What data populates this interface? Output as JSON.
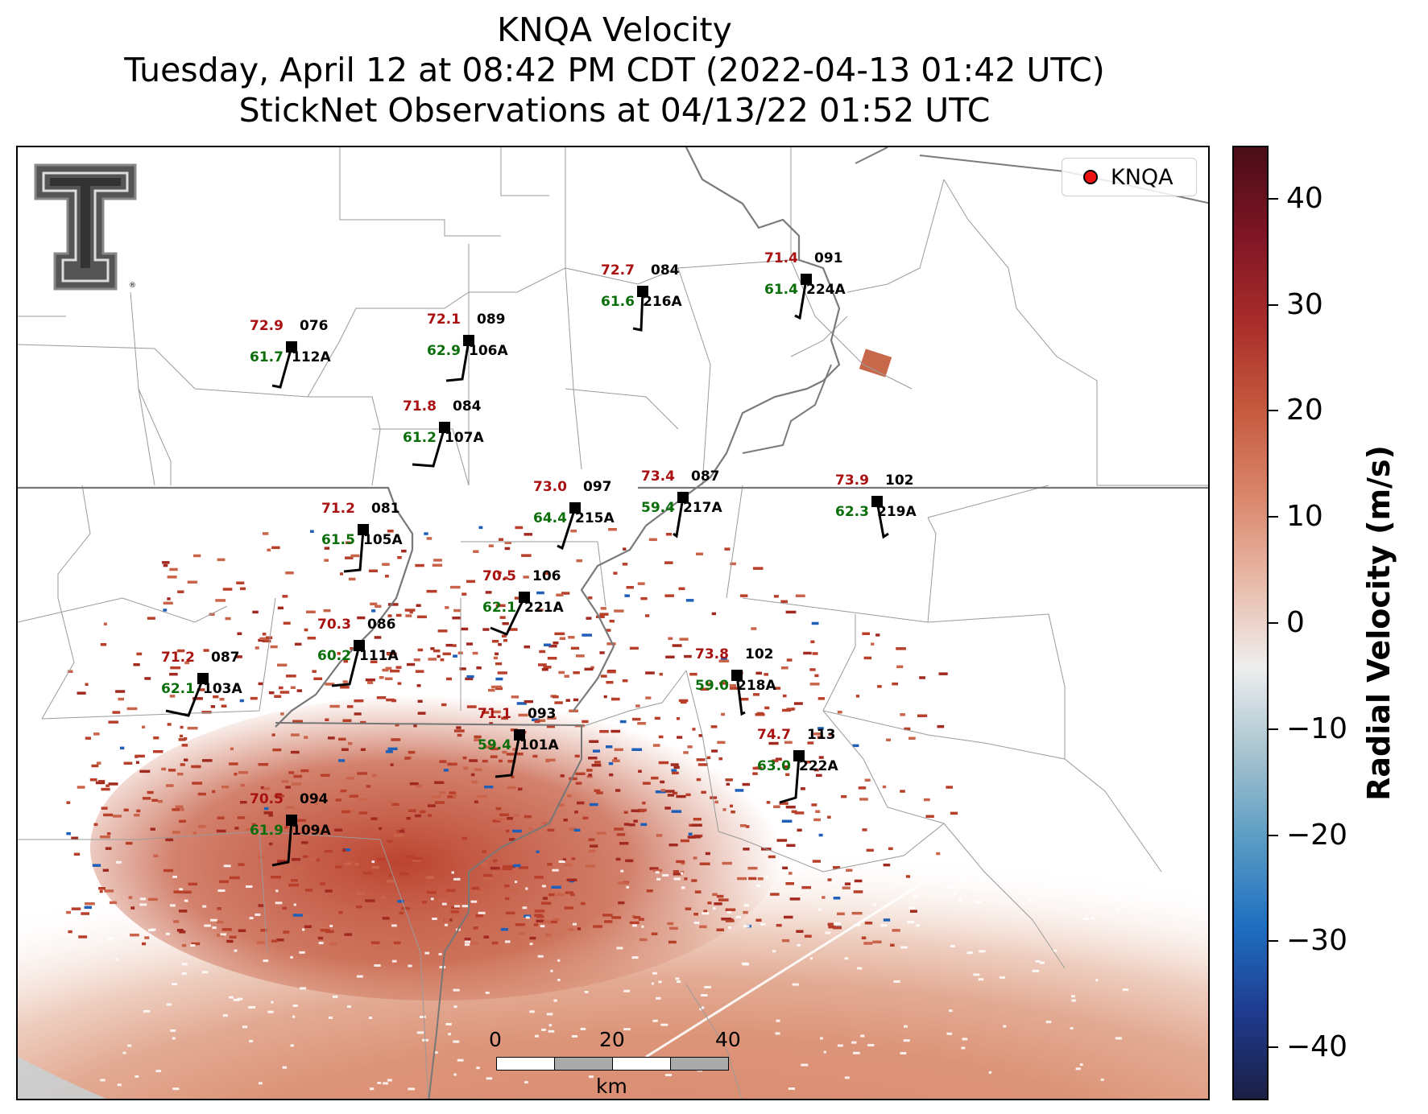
{
  "header": {
    "line1": "KNQA Velocity",
    "line2": "Tuesday, April 12 at 08:42 PM CDT (2022-04-13 01:42 UTC)",
    "line3": "StickNet Observations at 04/13/22 01:52 UTC"
  },
  "legend": {
    "label": "KNQA",
    "marker_color": "#ee1111"
  },
  "logo": {
    "name": "texas-tech-double-t-logo",
    "mark": "®"
  },
  "colorbar": {
    "label": "Radial Velocity (m/s)",
    "ticks": [
      "40",
      "30",
      "20",
      "10",
      "0",
      "−10",
      "−20",
      "−30",
      "−40"
    ],
    "range": [
      -45,
      45
    ],
    "colors": [
      "#1b1f45",
      "#1f3b8f",
      "#1f6fc1",
      "#5a9cc4",
      "#a7c3cf",
      "#eeeeee",
      "#e8b8a6",
      "#d98469",
      "#c4583d",
      "#a82c2a",
      "#7e1525",
      "#4a0d17"
    ]
  },
  "scalebar": {
    "labels": [
      "0",
      "20",
      "40"
    ],
    "unit": "km"
  },
  "stations": [
    {
      "id": "112A",
      "temp": "72.9",
      "dew": "61.7",
      "wdir": "076"
    },
    {
      "id": "106A",
      "temp": "72.1",
      "dew": "62.9",
      "wdir": "089"
    },
    {
      "id": "216A",
      "temp": "72.7",
      "dew": "61.6",
      "wdir": "084"
    },
    {
      "id": "224A",
      "temp": "71.4",
      "dew": "61.4",
      "wdir": "091"
    },
    {
      "id": "107A",
      "temp": "71.8",
      "dew": "61.2",
      "wdir": "084"
    },
    {
      "id": "215A",
      "temp": "73.0",
      "dew": "64.4",
      "wdir": "097"
    },
    {
      "id": "217A",
      "temp": "73.4",
      "dew": "59.4",
      "wdir": "087"
    },
    {
      "id": "219A",
      "temp": "73.9",
      "dew": "62.3",
      "wdir": "102"
    },
    {
      "id": "105A",
      "temp": "71.2",
      "dew": "61.5",
      "wdir": "081"
    },
    {
      "id": "221A",
      "temp": "70.5",
      "dew": "62.1",
      "wdir": "106"
    },
    {
      "id": "111A",
      "temp": "70.3",
      "dew": "60.2",
      "wdir": "086"
    },
    {
      "id": "103A",
      "temp": "71.2",
      "dew": "62.1",
      "wdir": "087"
    },
    {
      "id": "218A",
      "temp": "73.8",
      "dew": "59.0",
      "wdir": "102"
    },
    {
      "id": "101A",
      "temp": "71.1",
      "dew": "59.4",
      "wdir": "093"
    },
    {
      "id": "222A",
      "temp": "74.7",
      "dew": "63.0",
      "wdir": "113"
    },
    {
      "id": "109A",
      "temp": "70.5",
      "dew": "61.9",
      "wdir": "094"
    }
  ]
}
